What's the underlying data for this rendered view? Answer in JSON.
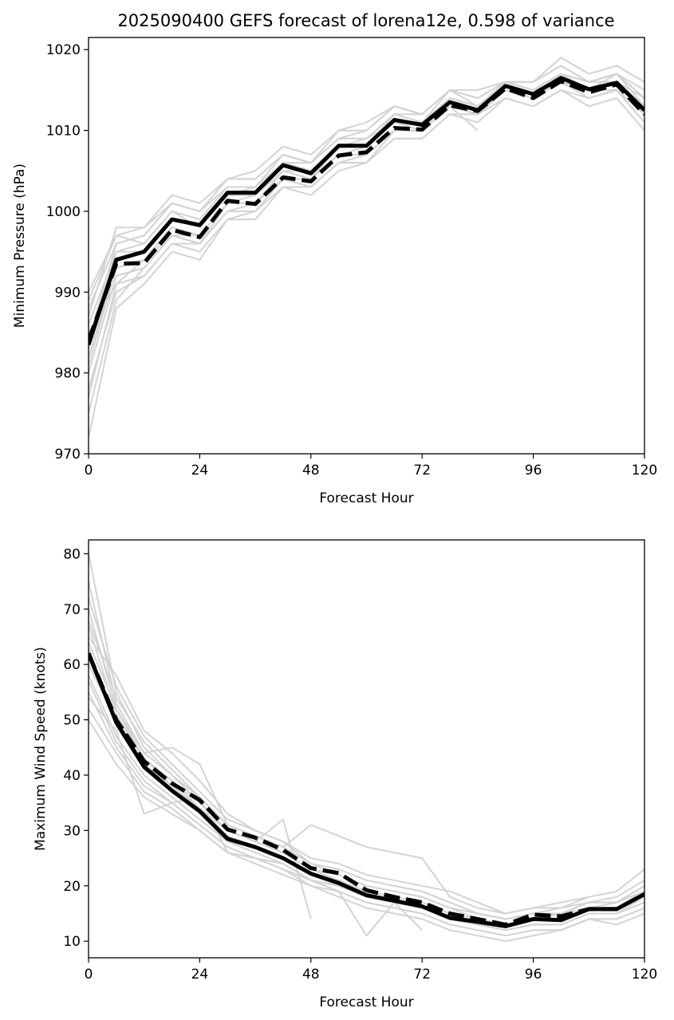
{
  "figure_title": "2025090400 GEFS forecast of lorena12e, 0.598 of variance",
  "chart_data": [
    {
      "type": "line",
      "title": "2025090400 GEFS forecast of lorena12e, 0.598 of variance",
      "xlabel": "Forecast Hour",
      "ylabel": "Minimum Pressure (hPa)",
      "xlim": [
        0,
        120
      ],
      "ylim": [
        970,
        1021.5
      ],
      "xticks": [
        0,
        24,
        48,
        72,
        96,
        120
      ],
      "yticks": [
        970,
        980,
        990,
        1000,
        1010,
        1020
      ],
      "x": [
        0,
        6,
        12,
        18,
        24,
        30,
        36,
        42,
        48,
        54,
        60,
        66,
        72,
        78,
        84,
        90,
        96,
        102,
        108,
        114,
        120
      ],
      "main_solid": {
        "name": "solid black",
        "values": [
          983.5,
          994,
          995,
          999,
          998.3,
          1002.3,
          1002.3,
          1005.7,
          1004.7,
          1008.1,
          1008.1,
          1011.3,
          1010.7,
          1013.5,
          1012.5,
          1015.5,
          1014.5,
          1016.5,
          1015.1,
          1015.9,
          1012.5
        ]
      },
      "main_dashed": {
        "name": "dashed black",
        "values": [
          984,
          993.5,
          993.6,
          997.7,
          996.8,
          1001.3,
          1000.9,
          1004.2,
          1003.7,
          1006.9,
          1007.3,
          1010.3,
          1010.1,
          1013.1,
          1012.4,
          1015.2,
          1014.0,
          1016.1,
          1014.7,
          1015.7,
          1012.0
        ]
      },
      "members": [
        [
          984,
          994,
          995,
          999,
          998,
          1002,
          1002,
          1006,
          1005,
          1008,
          1008,
          1011,
          1011,
          1014,
          1013,
          1016,
          1015,
          1017,
          1016,
          1016,
          1013
        ],
        [
          982,
          993,
          994,
          998,
          997,
          1001,
          1001,
          1005,
          1004,
          1007,
          1007,
          1010,
          1010,
          1013,
          1012,
          1015,
          1014,
          1016,
          1015,
          1015,
          1012
        ],
        [
          986,
          995,
          996,
          1000,
          999,
          1003,
          1003,
          1007,
          1006,
          1009,
          1009,
          1012,
          1012,
          1015,
          1014,
          1016,
          1016,
          1018,
          1016,
          1017,
          1014
        ],
        [
          980,
          992,
          993,
          997,
          996,
          1000,
          1000,
          1004,
          1003,
          1006,
          1006,
          1009,
          1009,
          1012,
          1012,
          1014,
          1013,
          1015,
          1014,
          1015,
          1011
        ],
        [
          988,
          996,
          997,
          1001,
          1000,
          1004,
          1004,
          1007,
          1006,
          1009,
          1010,
          1013,
          1012,
          1015,
          1015,
          1016,
          1016,
          1019,
          1017,
          1018,
          1016
        ],
        [
          978,
          990,
          992,
          996,
          995,
          999,
          1000,
          1003,
          1003,
          1006,
          1006,
          1010,
          1010,
          1013,
          1012,
          1015,
          1014,
          1016,
          1014,
          1015,
          1011
        ],
        [
          990,
          997,
          996,
          1000,
          998,
          1002,
          1003,
          1006,
          1005,
          1008,
          1009,
          1011,
          1011,
          1014,
          1013,
          1016,
          1015,
          1017,
          1016,
          1016,
          1014
        ],
        [
          985,
          991,
          994,
          998,
          997,
          1001,
          1002,
          1005,
          1004,
          1007,
          1008,
          1012,
          1011,
          1014,
          1013,
          1015,
          1014,
          1016,
          1015,
          1017,
          1013
        ],
        [
          975,
          989,
          993,
          997,
          996,
          1001,
          1001,
          1005,
          1004,
          1008,
          1008,
          1011,
          1010,
          1013,
          1012,
          1015,
          1014,
          1017,
          1015,
          1016,
          1012
        ],
        [
          983,
          995,
          995,
          999,
          998,
          1002,
          1002,
          1005,
          1005,
          1008,
          1008,
          1011,
          1010,
          1014,
          1013,
          1016,
          1015,
          1016,
          1015,
          1016,
          1013
        ],
        [
          987,
          998,
          998,
          1002,
          1001,
          1004,
          1005,
          1008,
          1007,
          1010,
          1011,
          1013,
          1012,
          1015,
          1014,
          1016,
          1016,
          1018,
          1016,
          1017,
          1014
        ],
        [
          972,
          988,
          991,
          995,
          994,
          999,
          999,
          1003,
          1002,
          1005,
          1006,
          1009,
          1009,
          1012,
          1011,
          1014,
          1013,
          1015,
          1013,
          1014,
          1010
        ],
        [
          984,
          996,
          997,
          1001,
          1000,
          1003,
          1003,
          1006,
          1006,
          1009,
          1009,
          1012,
          1011,
          1015,
          1014,
          1016,
          1015,
          1017,
          1016,
          1017,
          1014
        ],
        [
          981,
          993,
          994,
          997,
          997,
          1001,
          1001,
          1004,
          1004,
          1007,
          1007,
          1010,
          1010,
          1013,
          1010
        ],
        [
          989,
          997,
          998,
          1001,
          1000,
          1004,
          1004,
          1007,
          1006,
          1010,
          1010,
          1013,
          1012,
          1015,
          1013,
          1016,
          1015,
          1017,
          1016,
          1017,
          1015
        ],
        [
          977,
          991,
          992,
          996,
          996,
          1000,
          1001,
          1004,
          1003,
          1006,
          1007,
          1010,
          1010,
          1013,
          1012,
          1015,
          1014,
          1016,
          1015,
          1016,
          1013
        ]
      ]
    },
    {
      "type": "line",
      "title": "",
      "xlabel": "Forecast Hour",
      "ylabel": "Maximum Wind Speed (knots)",
      "xlim": [
        0,
        120
      ],
      "ylim": [
        7,
        82.5
      ],
      "xticks": [
        0,
        24,
        48,
        72,
        96,
        120
      ],
      "yticks": [
        10,
        20,
        30,
        40,
        50,
        60,
        70,
        80
      ],
      "x": [
        0,
        6,
        12,
        18,
        24,
        30,
        36,
        42,
        48,
        54,
        60,
        66,
        72,
        78,
        84,
        90,
        96,
        102,
        108,
        114,
        120
      ],
      "main_solid": {
        "name": "solid black",
        "values": [
          62,
          49.5,
          41.5,
          37.2,
          33.5,
          28.5,
          27,
          25,
          22.2,
          20.5,
          18.3,
          17.3,
          16.3,
          14.2,
          13.5,
          12.7,
          14,
          13.8,
          15.8,
          15.8,
          18.5
        ]
      },
      "main_dashed": {
        "name": "dashed black",
        "values": [
          62,
          50,
          42.5,
          38.5,
          35.5,
          30.2,
          28.7,
          26.5,
          23.2,
          22.3,
          19.2,
          18.0,
          17.0,
          15.0,
          14.0,
          13.0,
          14.8,
          14.5,
          15.8,
          15.8,
          18.5
        ]
      },
      "members": [
        [
          80,
          55,
          45,
          40,
          35,
          30,
          28,
          26,
          23,
          21,
          19,
          18,
          17,
          15,
          14,
          13,
          14,
          14,
          16,
          16,
          19
        ],
        [
          70,
          52,
          43,
          38,
          34,
          29,
          27,
          25,
          22,
          21,
          18,
          17,
          16,
          14,
          13,
          12,
          13,
          13,
          15,
          15,
          18
        ],
        [
          65,
          58,
          48,
          44,
          39,
          33,
          30,
          28,
          24,
          22,
          20,
          19,
          18,
          16,
          15,
          14,
          15,
          15,
          17,
          17,
          20
        ],
        [
          55,
          45,
          38,
          35,
          31,
          27,
          25,
          23,
          21,
          19,
          17,
          16,
          15,
          13,
          12,
          11,
          12,
          12,
          14,
          14,
          16
        ],
        [
          60,
          50,
          42,
          38,
          34,
          29,
          27,
          25,
          22,
          20,
          18,
          17,
          16,
          14,
          13,
          13,
          14,
          14,
          16,
          16,
          18
        ],
        [
          75,
          53,
          44,
          45,
          42,
          31,
          29,
          27,
          31,
          29,
          27,
          26,
          25,
          18,
          16,
          15,
          16,
          17,
          18,
          19,
          23
        ],
        [
          50,
          42,
          36,
          33,
          30,
          26,
          24,
          22,
          20,
          18,
          16,
          15,
          14,
          12,
          11,
          10,
          11,
          12,
          14,
          13,
          15
        ],
        [
          68,
          54,
          46,
          41,
          36,
          31,
          29,
          27,
          24,
          23,
          21,
          20,
          19,
          17,
          15,
          14,
          15,
          15,
          17,
          17,
          20
        ],
        [
          58,
          47,
          40,
          36,
          32,
          28,
          26,
          24,
          21,
          20,
          18,
          17,
          16,
          14,
          13,
          12,
          13,
          13,
          15,
          15,
          17
        ],
        [
          72,
          56,
          47,
          42,
          37,
          32,
          30,
          28,
          25,
          24,
          22,
          21,
          20,
          19,
          17,
          15,
          16,
          16,
          17,
          18,
          21
        ],
        [
          52,
          44,
          37,
          34,
          30,
          26,
          25,
          23,
          20,
          19,
          17,
          16,
          15,
          13,
          12,
          11,
          12,
          12,
          14,
          14,
          16
        ],
        [
          63,
          49,
          41,
          37,
          33,
          28,
          27,
          25,
          22,
          21,
          19,
          18,
          17,
          15,
          14,
          13,
          14,
          14,
          16,
          16,
          19
        ],
        [
          67,
          51,
          43,
          39,
          35,
          30,
          28,
          26,
          23,
          22,
          20,
          19,
          18,
          16,
          14,
          13,
          14,
          15,
          16,
          17,
          19
        ],
        [
          57,
          46,
          39,
          35,
          31,
          27,
          25,
          24,
          21,
          20,
          18,
          17,
          16,
          14,
          13,
          12,
          13,
          13,
          15,
          15,
          17
        ],
        [
          61,
          50,
          43,
          39,
          34,
          30,
          28,
          32,
          14
        ],
        [
          54,
          48,
          33,
          35,
          36,
          26,
          25,
          23,
          21,
          19,
          11,
          17,
          12
        ],
        [
          64,
          52,
          44,
          40,
          36,
          31,
          29,
          27,
          24,
          23,
          21,
          20,
          19,
          17,
          15,
          14,
          15,
          16,
          18
        ]
      ]
    }
  ]
}
